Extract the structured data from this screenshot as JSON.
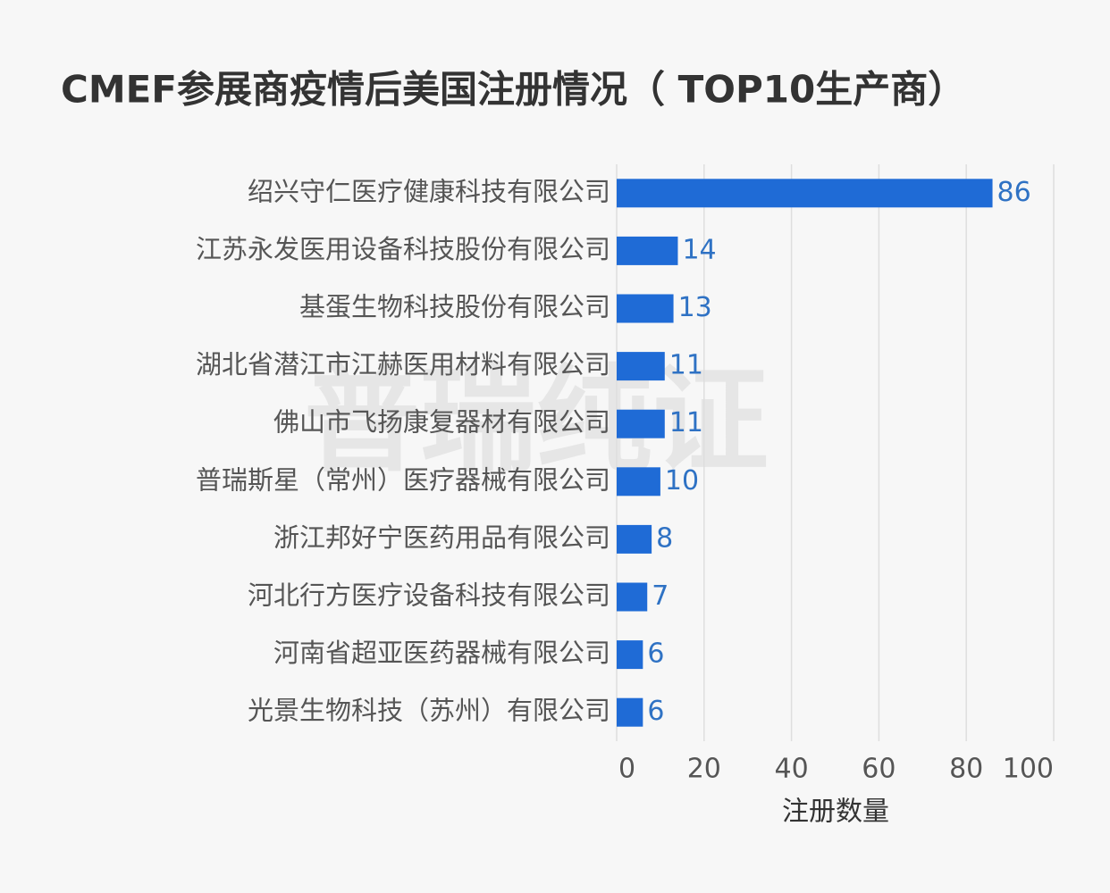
{
  "chart_data": {
    "type": "bar",
    "orientation": "horizontal",
    "title": "CMEF参展商疫情后美国注册情况（ TOP10生产商）",
    "watermark": "普瑞纯证",
    "x_label": "注册数量",
    "categories": [
      "绍兴守仁医疗健康科技有限公司",
      "江苏永发医用设备科技股份有限公司",
      "基蛋生物科技股份有限公司",
      "湖北省潜江市江赫医用材料有限公司",
      "佛山市飞扬康复器材有限公司",
      "普瑞斯星（常州）医疗器械有限公司",
      "浙江邦好宁医药用品有限公司",
      "河北行方医疗设备科技有限公司",
      "河南省超亚医药器械有限公司",
      "光景生物科技（苏州）有限公司"
    ],
    "values": [
      86,
      14,
      13,
      11,
      11,
      10,
      8,
      7,
      6,
      6
    ],
    "color": "#1f6bd6",
    "label_color": "#2f72c4",
    "xlim": [
      0,
      100
    ],
    "xticks": [
      0,
      20,
      40,
      60,
      80,
      100
    ],
    "grid": true
  }
}
